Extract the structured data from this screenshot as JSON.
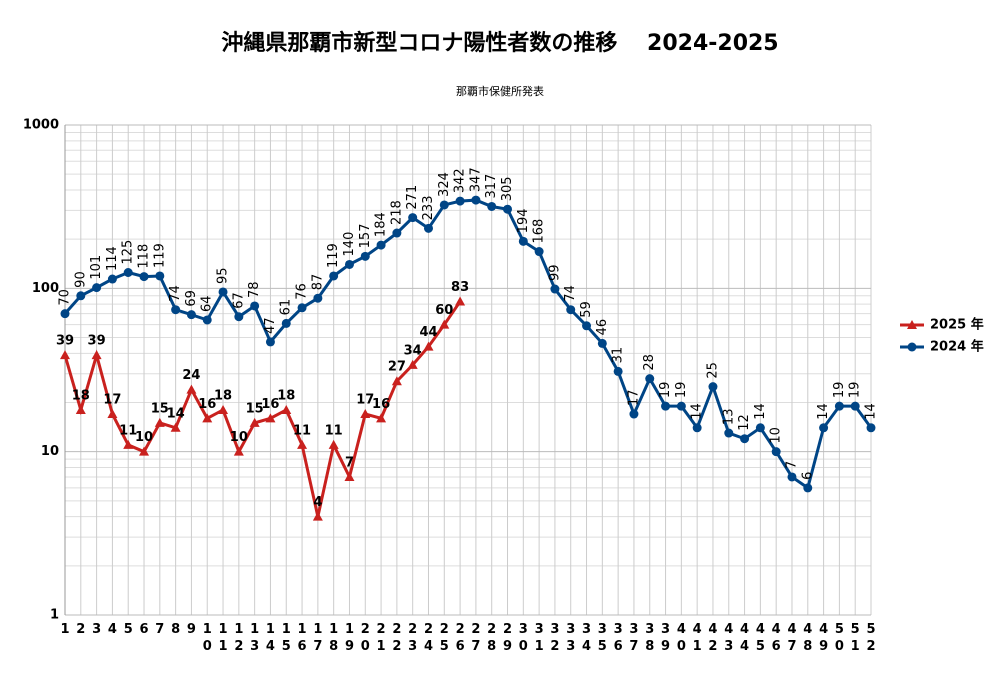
{
  "chart_data": {
    "type": "line",
    "title": "沖縄県那覇市新型コロナ陽性者数の推移　 2024-2025",
    "subtitle": "那覇市保健所発表",
    "categories": [
      "1",
      "2",
      "3",
      "4",
      "5",
      "6",
      "7",
      "8",
      "9",
      "10",
      "11",
      "12",
      "13",
      "14",
      "15",
      "16",
      "17",
      "18",
      "19",
      "20",
      "21",
      "22",
      "23",
      "24",
      "25",
      "26",
      "27",
      "28",
      "29",
      "30",
      "31",
      "32",
      "33",
      "34",
      "35",
      "36",
      "37",
      "38",
      "39",
      "40",
      "41",
      "42",
      "43",
      "44",
      "45",
      "46",
      "47",
      "48",
      "49",
      "50",
      "51",
      "52"
    ],
    "series": [
      {
        "name": "2025 年",
        "color": "#c9211e",
        "marker": "triangle",
        "values": [
          39,
          18,
          39,
          17,
          11,
          10,
          15,
          14,
          24,
          16,
          18,
          10,
          15,
          16,
          18,
          11,
          4,
          11,
          7,
          17,
          16,
          27,
          34,
          44,
          60,
          83,
          null,
          null,
          null,
          null,
          null,
          null,
          null,
          null,
          null,
          null,
          null,
          null,
          null,
          null,
          null,
          null,
          null,
          null,
          null,
          null,
          null,
          null,
          null,
          null,
          null,
          null
        ]
      },
      {
        "name": "2024 年",
        "color": "#004586",
        "marker": "circle",
        "values": [
          70,
          90,
          101,
          114,
          125,
          118,
          119,
          74,
          69,
          64,
          95,
          67,
          78,
          47,
          61,
          76,
          87,
          119,
          140,
          157,
          184,
          218,
          271,
          233,
          324,
          342,
          347,
          317,
          305,
          194,
          168,
          99,
          74,
          59,
          46,
          31,
          17,
          28,
          19,
          19,
          14,
          25,
          13,
          12,
          14,
          10,
          7,
          6,
          14,
          19,
          19,
          14
        ]
      }
    ],
    "log_scale": true,
    "ylim": [
      1,
      1000
    ],
    "yticks": [
      1,
      10,
      100,
      1000
    ],
    "grid": true,
    "legend": "right"
  }
}
